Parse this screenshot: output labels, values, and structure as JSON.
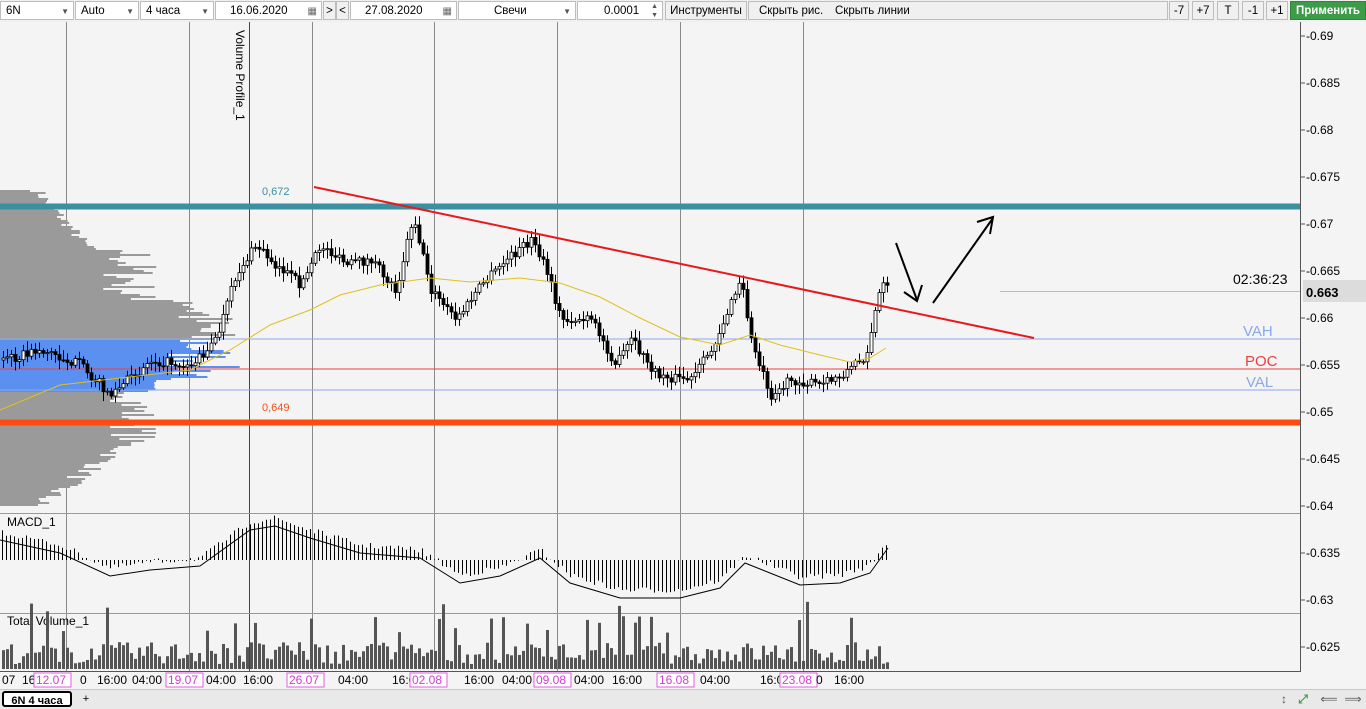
{
  "toolbar": {
    "symbol": "6N",
    "scale": "Auto",
    "timeframe": "4 часа",
    "date_from": "16.06.2020",
    "nav_next": ">",
    "nav_prev": "<",
    "date_to": "27.08.2020",
    "chart_type": "Свечи",
    "tick_size": "0.0001",
    "instruments_label": "Инструменты",
    "hide_drawings_label": "Скрыть рис.",
    "hide_lines_label": "Скрыть линии",
    "btn_minus7": "-7",
    "btn_plus7": "+7",
    "btn_t": "T",
    "btn_minus1": "-1",
    "btn_plus1": "+1",
    "apply_label": "Применить"
  },
  "chart": {
    "price_axis_labels": [
      "0.69",
      "0.685",
      "0.68",
      "0.675",
      "0.67",
      "0.665",
      "0.66",
      "0.655",
      "0.65",
      "0.645",
      "0.64",
      "0.635",
      "0.63",
      "0.625"
    ],
    "current_price": "0.663",
    "countdown": "02:36:23",
    "level_high_label": "0,672",
    "level_low_label": "0,649",
    "vah_label": "VAH",
    "poc_label": "POC",
    "val_label": "VAL",
    "volume_profile_label": "Volume Profile_1",
    "macd_label": "MACD_1",
    "volume_label": "Total Volume_1",
    "time_labels": [
      {
        "text": "07",
        "hl": false
      },
      {
        "text": "16:0",
        "hl": false
      },
      {
        "text": "12.07",
        "hl": true
      },
      {
        "text": "0",
        "hl": false
      },
      {
        "text": "16:00",
        "hl": false
      },
      {
        "text": "04:00",
        "hl": false
      },
      {
        "text": "19.07",
        "hl": true
      },
      {
        "text": "04:00",
        "hl": false
      },
      {
        "text": "16:00",
        "hl": false
      },
      {
        "text": "26.07",
        "hl": true
      },
      {
        "text": "04:00",
        "hl": false
      },
      {
        "text": "16:0",
        "hl": false
      },
      {
        "text": "02.08",
        "hl": true
      },
      {
        "text": "16:00",
        "hl": false
      },
      {
        "text": "04:00",
        "hl": false
      },
      {
        "text": "09.08",
        "hl": true
      },
      {
        "text": "04:00",
        "hl": false
      },
      {
        "text": "16:00",
        "hl": false
      },
      {
        "text": "16.08",
        "hl": true
      },
      {
        "text": "04:00",
        "hl": false
      },
      {
        "text": "16:0",
        "hl": false
      },
      {
        "text": "23.08",
        "hl": true
      },
      {
        "text": "0",
        "hl": false
      },
      {
        "text": "16:00",
        "hl": false
      }
    ],
    "colors": {
      "level_high": "#3a8fa3",
      "level_low": "#ff4a10",
      "trendline": "#e8191d",
      "vah_val": "#8aa9e8",
      "poc": "#e84040",
      "ma": "#e0c020",
      "profile": "#9a9a9a",
      "value_area": "#5b8ff0",
      "apply": "#3d9c47"
    }
  },
  "tabs": {
    "active_tab": "6N 4 часа",
    "add_tab": "+"
  },
  "bottom_controls": {
    "resize_icon": "↕",
    "expand_icon": "⤢",
    "nav_left_icon": "⟸",
    "nav_right_icon": "⟹"
  }
}
